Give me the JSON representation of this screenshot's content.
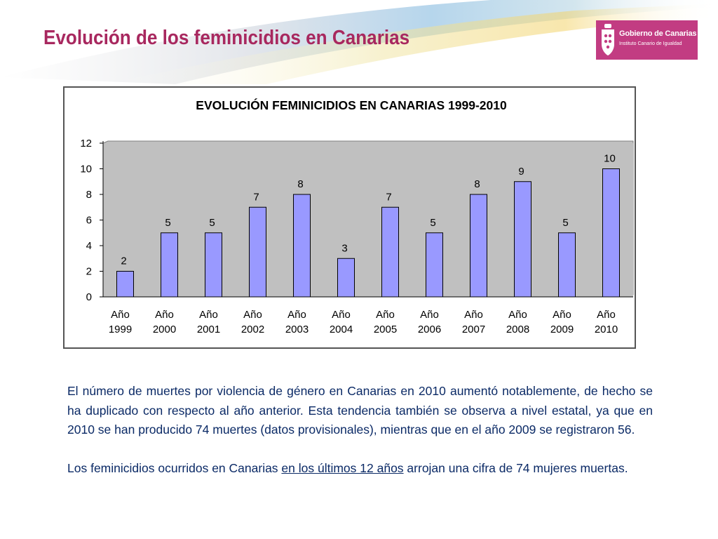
{
  "slide": {
    "title": "Evolución de los feminicidios en Canarias",
    "colors": {
      "title": "#a8285f",
      "logo_bg": "#c23c82",
      "body_text": "#0b2a66",
      "bar_fill": "#9999ff"
    }
  },
  "logo": {
    "name": "Gobierno de Canarias",
    "subtitle": "Instituto Canario de Igualdad",
    "icon": "coat-of-arms-icon"
  },
  "chart_data": {
    "type": "bar",
    "title": "EVOLUCIÓN FEMINICIDIOS EN CANARIAS 1999-2010",
    "categories": [
      "Año 1999",
      "Año 2000",
      "Año 2001",
      "Año 2002",
      "Año 2003",
      "Año 2004",
      "Año 2005",
      "Año 2006",
      "Año 2007",
      "Año 2008",
      "Año 2009",
      "Año 2010"
    ],
    "values": [
      2,
      5,
      5,
      7,
      8,
      3,
      7,
      5,
      8,
      9,
      5,
      10
    ],
    "ylim": [
      0,
      12
    ],
    "yticks": [
      0,
      2,
      4,
      6,
      8,
      10,
      12
    ],
    "xlabel": "",
    "ylabel": "",
    "data_labels": true,
    "grid": false,
    "legend": "none"
  },
  "body": {
    "paragraph1": "El número de muertes por violencia de género en Canarias en 2010 aumentó notablemente, de hecho se ha duplicado con respecto al año anterior. Esta tendencia también se observa a nivel estatal, ya que en 2010 se han producido 74 muertes (datos provisionales), mientras que en el año 2009 se registraron 56.",
    "paragraph2_before": "Los feminicidios ocurridos en Canarias ",
    "paragraph2_underlined": "en los últimos 12 años",
    "paragraph2_after": " arrojan una cifra de 74 mujeres muertas."
  }
}
